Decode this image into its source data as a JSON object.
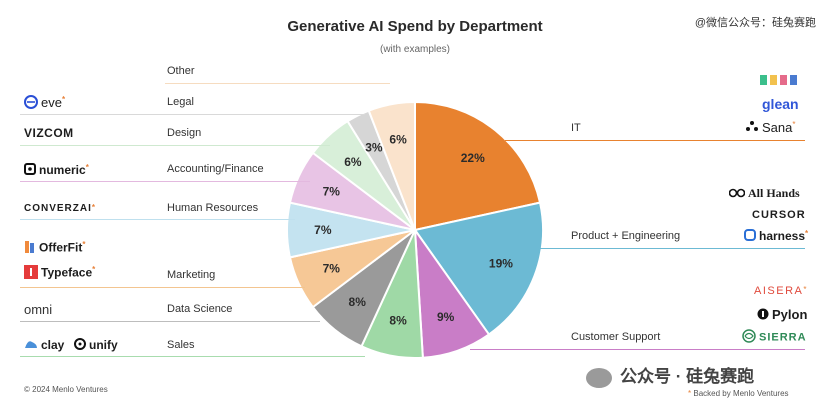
{
  "header": {
    "title": "Generative AI Spend by Department",
    "subtitle": "(with examples)",
    "watermark_top": "@微信公众号：硅兔赛跑"
  },
  "chart_data": {
    "type": "pie",
    "title": "Generative AI Spend by Department",
    "subtitle": "(with examples)",
    "slices": [
      {
        "label": "IT",
        "value": 22,
        "display": "22%",
        "color": "#e8822f"
      },
      {
        "label": "Product + Engineering",
        "value": 19,
        "display": "19%",
        "color": "#6cbad4"
      },
      {
        "label": "Customer Support",
        "value": 9,
        "display": "9%",
        "color": "#c97dc7"
      },
      {
        "label": "Sales",
        "value": 8,
        "display": "8%",
        "color": "#9fd9a6"
      },
      {
        "label": "Data Science",
        "value": 8,
        "display": "8%",
        "color": "#9a9a9a"
      },
      {
        "label": "Marketing",
        "value": 7,
        "display": "7%",
        "color": "#f6c896"
      },
      {
        "label": "Human Resources",
        "value": 7,
        "display": "7%",
        "color": "#c4e3f0"
      },
      {
        "label": "Accounting/Finance",
        "value": 7,
        "display": "7%",
        "color": "#e8c4e5"
      },
      {
        "label": "Design",
        "value": 6,
        "display": "6%",
        "color": "#d8efd9"
      },
      {
        "label": "Legal",
        "value": 3,
        "display": "3%",
        "color": "#d6d6d6"
      },
      {
        "label": "Other",
        "value": 6,
        "display": "6%",
        "color": "#fae3cc"
      }
    ]
  },
  "left_rows": [
    {
      "dept": "Other",
      "logos": []
    },
    {
      "dept": "Legal",
      "logos": [
        "eve"
      ]
    },
    {
      "dept": "Design",
      "logos": [
        "VIZCOM"
      ]
    },
    {
      "dept": "Accounting/Finance",
      "logos": [
        "numeric"
      ]
    },
    {
      "dept": "Human Resources",
      "logos": [
        "CONVERZAI"
      ]
    },
    {
      "dept": "Marketing",
      "logos": [
        "OfferFit",
        "Typeface"
      ]
    },
    {
      "dept": "Data Science",
      "logos": [
        "omni"
      ]
    },
    {
      "dept": "Sales",
      "logos": [
        "clay",
        "unify"
      ]
    }
  ],
  "right_rows": [
    {
      "dept": "IT",
      "logos": [
        "glean",
        "Sana"
      ]
    },
    {
      "dept": "Product + Engineering",
      "logos": [
        "All Hands",
        "CURSOR",
        "harness"
      ]
    },
    {
      "dept": "Customer Support",
      "logos": [
        "AISERA",
        "Pylon",
        "SIERRA"
      ]
    }
  ],
  "footer": {
    "copyright": "© 2024 Menlo Ventures",
    "backed": "Backed by Menlo Ventures",
    "star": "*",
    "watermark_bottom": "公众号 · 硅兔赛跑"
  },
  "colors": {
    "it_line": "#e8822f",
    "product_line": "#6cbad4",
    "support_line": "#c97dc7"
  }
}
